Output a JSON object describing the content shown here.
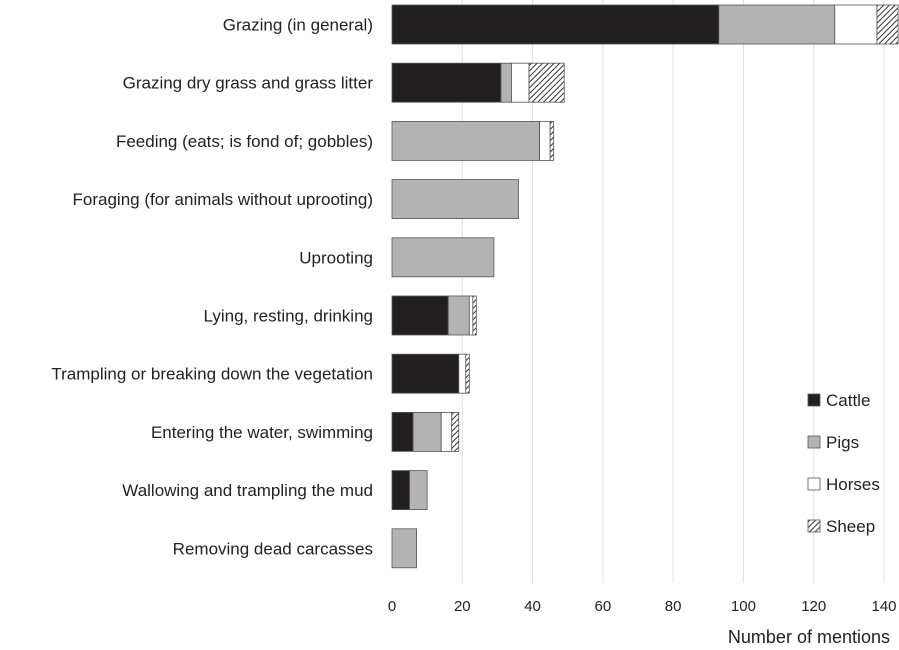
{
  "chart_data": {
    "type": "bar",
    "orientation": "horizontal",
    "stacked": true,
    "categories": [
      "Grazing (in general)",
      "Grazing dry grass and grass litter",
      "Feeding (eats; is fond of; gobbles)",
      "Foraging (for animals without uprooting)",
      "Uprooting",
      "Lying, resting, drinking",
      "Trampling or breaking down the vegetation",
      "Entering the water, swimming",
      "Wallowing and trampling the mud",
      "Removing dead carcasses"
    ],
    "series": [
      {
        "name": "Cattle",
        "fill": "#231f20",
        "pattern": "solid",
        "values": [
          93,
          31,
          0,
          0,
          0,
          16,
          19,
          6,
          5,
          0
        ]
      },
      {
        "name": "Pigs",
        "fill": "#b3b3b3",
        "pattern": "solid",
        "values": [
          33,
          3,
          42,
          36,
          29,
          6,
          0,
          8,
          5,
          7
        ]
      },
      {
        "name": "Horses",
        "fill": "#ffffff",
        "pattern": "solid",
        "values": [
          12,
          5,
          3,
          0,
          0,
          1,
          2,
          3,
          0,
          0
        ]
      },
      {
        "name": "Sheep",
        "fill": "#ffffff",
        "pattern": "hatch",
        "values": [
          6,
          10,
          1,
          0,
          0,
          1,
          1,
          2,
          0,
          0
        ]
      }
    ],
    "xlabel": "Number of mentions",
    "ylabel": "",
    "xlim": [
      0,
      140
    ],
    "xticks": [
      "0",
      "20",
      "40",
      "60",
      "80",
      "100",
      "120",
      "140"
    ],
    "grid": "vertical",
    "legend_position": "right"
  }
}
